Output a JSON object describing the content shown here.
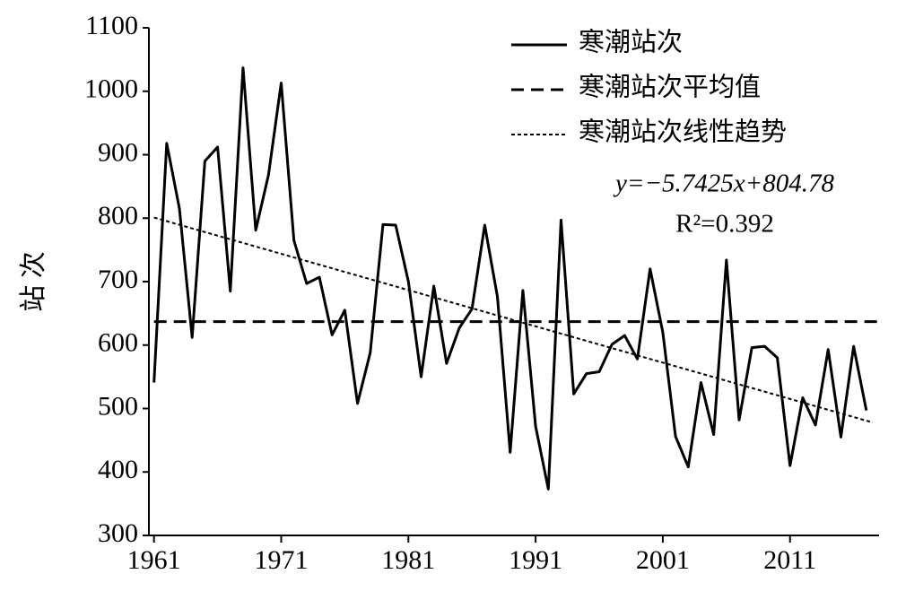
{
  "chart_data": {
    "type": "line",
    "ylabel": "站 次",
    "xlim": [
      1960.6,
      2018
    ],
    "ylim": [
      300,
      1100
    ],
    "xticks": [
      1961,
      1971,
      1981,
      1991,
      2001,
      2011
    ],
    "yticks": [
      300,
      400,
      500,
      600,
      700,
      800,
      900,
      1000,
      1100
    ],
    "legend": "upper right",
    "annotations": [
      "y=−5.7425x+804.78",
      "R²=0.392"
    ],
    "series": [
      {
        "name": "寒潮站次",
        "color": "#000000",
        "style": "solid",
        "x": [
          1961,
          1962,
          1963,
          1964,
          1965,
          1966,
          1967,
          1968,
          1969,
          1970,
          1971,
          1972,
          1973,
          1974,
          1975,
          1976,
          1977,
          1978,
          1979,
          1980,
          1981,
          1982,
          1983,
          1984,
          1985,
          1986,
          1987,
          1988,
          1989,
          1990,
          1991,
          1992,
          1993,
          1994,
          1995,
          1996,
          1997,
          1998,
          1999,
          2000,
          2001,
          2002,
          2003,
          2004,
          2005,
          2006,
          2007,
          2008,
          2009,
          2010,
          2011,
          2012,
          2013,
          2014,
          2015,
          2016,
          2017
        ],
        "values": [
          541,
          918,
          815,
          612,
          890,
          912,
          685,
          1037,
          781,
          868,
          1013,
          765,
          697,
          707,
          616,
          655,
          508,
          588,
          790,
          789,
          700,
          550,
          693,
          571,
          627,
          657,
          789,
          676,
          431,
          686,
          472,
          373,
          797,
          523,
          555,
          558,
          601,
          615,
          578,
          720,
          620,
          456,
          408,
          541,
          459,
          734,
          482,
          596,
          598,
          580,
          410,
          517,
          474,
          593,
          455,
          598,
          497
        ]
      },
      {
        "name": "寒潮站次平均值",
        "color": "#000000",
        "style": "dashed",
        "x": [
          1961,
          2018
        ],
        "values": [
          637,
          637
        ]
      },
      {
        "name": "寒潮站次线性趋势",
        "color": "#000000",
        "style": "dotted",
        "x": [
          1961,
          2017.5
        ],
        "values": [
          801,
          478
        ]
      }
    ]
  }
}
